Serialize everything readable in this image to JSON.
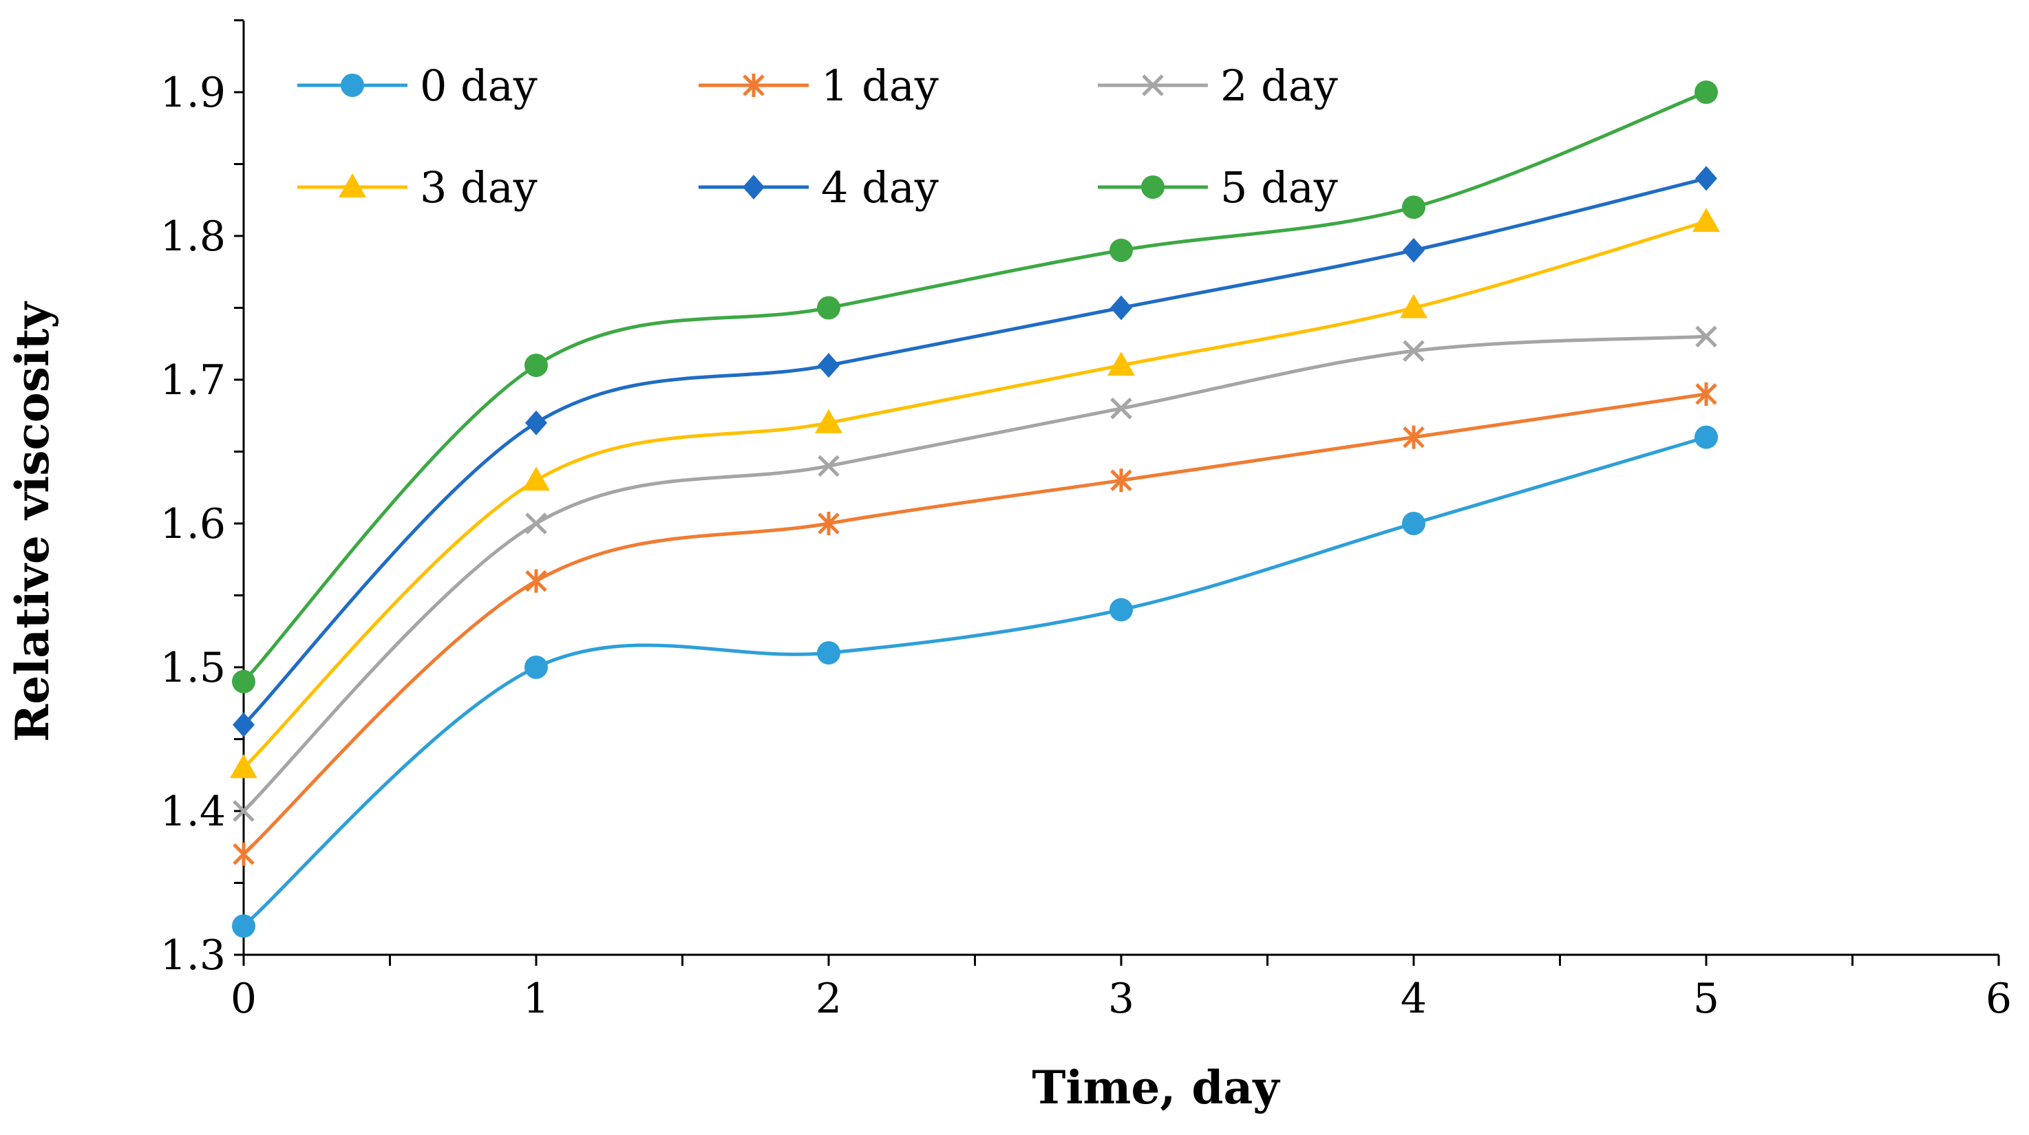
{
  "chart_data": {
    "type": "line",
    "title": "",
    "xlabel": "Time, day",
    "ylabel": "Relative viscosity",
    "xlim": [
      0,
      6
    ],
    "ylim": [
      1.3,
      1.95
    ],
    "x_ticks": [
      "0",
      "1",
      "2",
      "3",
      "4",
      "5",
      "6"
    ],
    "y_ticks": [
      "1.3",
      "1.4",
      "1.5",
      "1.6",
      "1.7",
      "1.8",
      "1.9"
    ],
    "grid": false,
    "legend_position": "top-left",
    "x": [
      0,
      1,
      2,
      3,
      4,
      5
    ],
    "series": [
      {
        "name": "0 day",
        "color": "#2E9FD8",
        "marker": "circle",
        "values": [
          1.32,
          1.5,
          1.51,
          1.54,
          1.6,
          1.66
        ]
      },
      {
        "name": "1 day",
        "color": "#F07C32",
        "marker": "asterisk",
        "values": [
          1.37,
          1.56,
          1.6,
          1.63,
          1.66,
          1.69
        ]
      },
      {
        "name": "2 day",
        "color": "#A5A5A5",
        "marker": "x",
        "values": [
          1.4,
          1.6,
          1.64,
          1.68,
          1.72,
          1.73
        ]
      },
      {
        "name": "3 day",
        "color": "#FFC000",
        "marker": "triangle",
        "values": [
          1.43,
          1.63,
          1.67,
          1.71,
          1.75,
          1.81
        ]
      },
      {
        "name": "4 day",
        "color": "#1F6CC4",
        "marker": "diamond",
        "values": [
          1.46,
          1.67,
          1.71,
          1.75,
          1.79,
          1.84
        ]
      },
      {
        "name": "5 day",
        "color": "#3DA844",
        "marker": "circle",
        "values": [
          1.49,
          1.71,
          1.75,
          1.79,
          1.82,
          1.9
        ]
      }
    ]
  }
}
